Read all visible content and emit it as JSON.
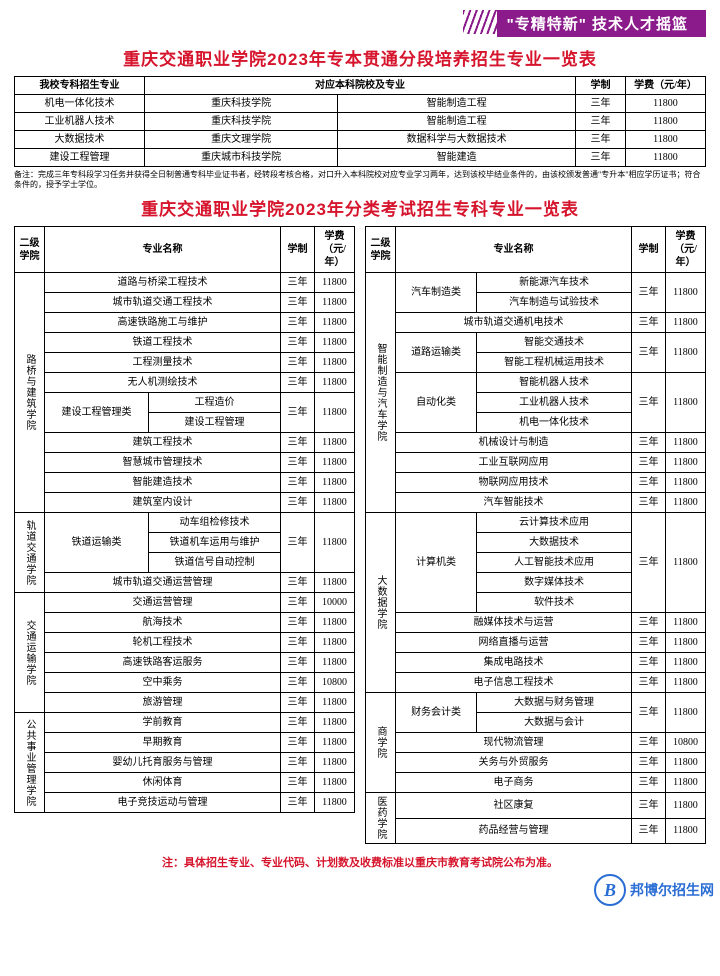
{
  "banner": "\"专精特新\" 技术人才摇篮",
  "title1": "重庆交通职业学院2023年专本贯通分段培养招生专业一览表",
  "t1": {
    "h": [
      "我校专科招生专业",
      "对应本科院校及专业",
      "",
      "学制",
      "学费（元/年）"
    ],
    "r": [
      [
        "机电一体化技术",
        "重庆科技学院",
        "智能制造工程",
        "三年",
        "11800"
      ],
      [
        "工业机器人技术",
        "重庆科技学院",
        "智能制造工程",
        "三年",
        "11800"
      ],
      [
        "大数据技术",
        "重庆文理学院",
        "数据科学与大数据技术",
        "三年",
        "11800"
      ],
      [
        "建设工程管理",
        "重庆城市科技学院",
        "智能建造",
        "三年",
        "11800"
      ]
    ]
  },
  "note": "备注：完成三年专科段学习任务并获得全日制普通专科毕业证书者，经转段考核合格，对口升入本科院校对应专业学习两年，达到该校毕结业条件的，由该校颁发普通\"专升本\"相应学历证书；符合条件的，授予学士学位。",
  "title2": "重庆交通职业学院2023年分类考试招生专科专业一览表",
  "h2": [
    "二级学院",
    "专业名称",
    "学制",
    "学费（元/年）"
  ],
  "left": [
    {
      "col": "路桥与建筑学院",
      "rows": [
        [
          "道路与桥梁工程技术",
          "三年",
          "11800"
        ],
        [
          "城市轨道交通工程技术",
          "三年",
          "11800"
        ],
        [
          "高速铁路施工与维护",
          "三年",
          "11800"
        ],
        [
          "铁道工程技术",
          "三年",
          "11800"
        ],
        [
          "工程测量技术",
          "三年",
          "11800"
        ],
        [
          "无人机测绘技术",
          "三年",
          "11800"
        ]
      ],
      "grp": {
        "name": "建设工程管理类",
        "sub": [
          "工程造价",
          "建设工程管理"
        ],
        "d": "三年",
        "f": "11800"
      },
      "rows2": [
        [
          "建筑工程技术",
          "三年",
          "11800"
        ],
        [
          "智慧城市管理技术",
          "三年",
          "11800"
        ],
        [
          "智能建造技术",
          "三年",
          "11800"
        ],
        [
          "建筑室内设计",
          "三年",
          "11800"
        ]
      ]
    },
    {
      "col": "轨道交通学院",
      "grp": {
        "name": "铁道运输类",
        "sub": [
          "动车组检修技术",
          "铁道机车运用与维护",
          "铁道信号自动控制"
        ],
        "d": "三年",
        "f": "11800"
      },
      "rows2": [
        [
          "城市轨道交通运营管理",
          "三年",
          "11800"
        ]
      ]
    },
    {
      "col": "交通运输学院",
      "rows": [
        [
          "交通运营管理",
          "三年",
          "10000"
        ],
        [
          "航海技术",
          "三年",
          "11800"
        ],
        [
          "轮机工程技术",
          "三年",
          "11800"
        ],
        [
          "高速铁路客运服务",
          "三年",
          "11800"
        ],
        [
          "空中乘务",
          "三年",
          "10800"
        ],
        [
          "旅游管理",
          "三年",
          "11800"
        ]
      ]
    },
    {
      "col": "公共事业管理学院",
      "rows": [
        [
          "学前教育",
          "三年",
          "11800"
        ],
        [
          "早期教育",
          "三年",
          "11800"
        ],
        [
          "婴幼儿托育服务与管理",
          "三年",
          "11800"
        ],
        [
          "休闲体育",
          "三年",
          "11800"
        ],
        [
          "电子竞技运动与管理",
          "三年",
          "11800"
        ]
      ]
    }
  ],
  "right": [
    {
      "col": "智能制造与汽车学院",
      "g1": {
        "name": "汽车制造类",
        "sub": [
          "新能源汽车技术",
          "汽车制造与试验技术"
        ],
        "d": "三年",
        "f": "11800"
      },
      "rows1": [
        [
          "城市轨道交通机电技术",
          "三年",
          "11800"
        ]
      ],
      "g2": {
        "name": "道路运输类",
        "sub": [
          "智能交通技术",
          "智能工程机械运用技术"
        ],
        "d": "三年",
        "f": "11800"
      },
      "g3": {
        "name": "自动化类",
        "sub": [
          "智能机器人技术",
          "工业机器人技术",
          "机电一体化技术"
        ],
        "d": "三年",
        "f": "11800"
      },
      "rows2": [
        [
          "机械设计与制造",
          "三年",
          "11800"
        ],
        [
          "工业互联网应用",
          "三年",
          "11800"
        ],
        [
          "物联网应用技术",
          "三年",
          "11800"
        ],
        [
          "汽车智能技术",
          "三年",
          "11800"
        ]
      ]
    },
    {
      "col": "大数据学院",
      "g1": {
        "name": "计算机类",
        "sub": [
          "云计算技术应用",
          "大数据技术",
          "人工智能技术应用",
          "数字媒体技术",
          "软件技术"
        ],
        "d": "三年",
        "f": "11800"
      },
      "rows2": [
        [
          "融媒体技术与运营",
          "三年",
          "11800"
        ],
        [
          "网络直播与运营",
          "三年",
          "11800"
        ],
        [
          "集成电路技术",
          "三年",
          "11800"
        ],
        [
          "电子信息工程技术",
          "三年",
          "11800"
        ]
      ]
    },
    {
      "col": "商学院",
      "g1": {
        "name": "财务会计类",
        "sub": [
          "大数据与财务管理",
          "大数据与会计"
        ],
        "d": "三年",
        "f": "11800"
      },
      "rows2": [
        [
          "现代物流管理",
          "三年",
          "10800"
        ],
        [
          "关务与外贸服务",
          "三年",
          "11800"
        ],
        [
          "电子商务",
          "三年",
          "11800"
        ]
      ]
    },
    {
      "col": "医药学院",
      "rows": [
        [
          "社区康复",
          "三年",
          "11800"
        ],
        [
          "药品经营与管理",
          "三年",
          "11800"
        ]
      ]
    }
  ],
  "footnote": "注：具体招生专业、专业代码、计划数及收费标准以重庆市教育考试院公布为准。",
  "wm": "邦博尔招生网"
}
